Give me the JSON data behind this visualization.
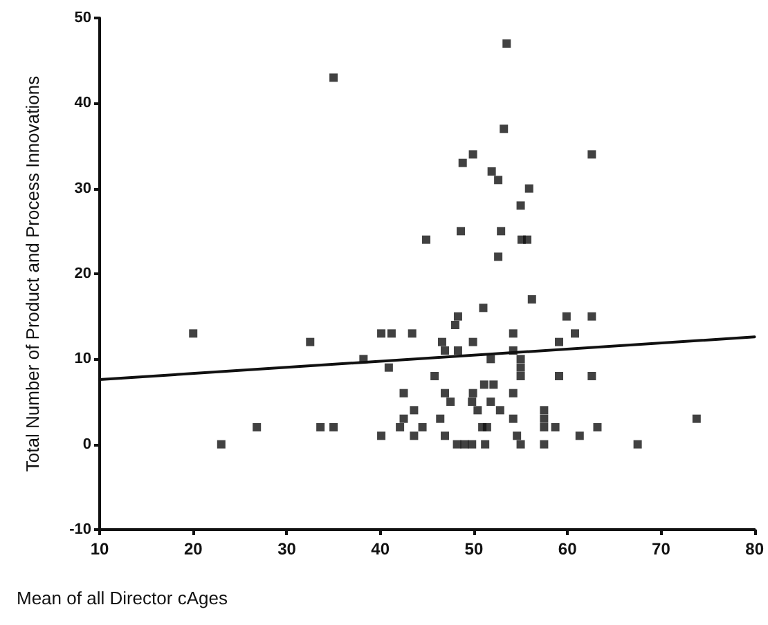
{
  "chart_data": {
    "type": "scatter",
    "xlabel": "Mean of all Director cAges",
    "ylabel": "Total Number of Product and Process Innovations",
    "xlim": [
      10,
      80
    ],
    "xticks": [
      10,
      20,
      30,
      40,
      50,
      60,
      70,
      80
    ],
    "ylim": [
      -10,
      50
    ],
    "yticks": [
      -10,
      0,
      10,
      20,
      30,
      40,
      50
    ],
    "marker": "square",
    "series": [
      {
        "color": "#111111",
        "x": [
          35,
          44.9,
          53.5,
          53.2,
          62.6,
          49.9,
          48.8,
          51.9,
          52.6,
          55.9,
          55,
          48.6,
          52.9,
          55.1,
          55.7,
          52.6,
          20,
          23,
          26.8,
          32.5,
          33.6,
          35,
          38.2,
          40.1,
          41.2,
          43.4,
          40.9,
          40.1,
          42.5,
          42.5,
          43.6,
          42.1,
          43.6,
          44.5,
          56.2,
          51,
          48.3,
          48,
          59.9,
          62.6,
          60.8,
          54.2,
          46.6,
          49.9,
          59.1,
          46.9,
          48.3,
          54.2,
          51.8,
          55,
          55,
          55,
          45.8,
          59.1,
          62.6,
          51.1,
          52.1,
          46.9,
          49.9,
          54.2,
          47.5,
          49.8,
          51.8,
          50.4,
          52.8,
          57.5,
          57.5,
          46.4,
          54.2,
          50.9,
          51.4,
          57.5,
          58.7,
          63.2,
          46.9,
          54.6,
          61.3,
          48.2,
          49,
          49.8,
          51.2,
          55,
          57.5,
          67.5,
          73.8
        ],
        "values": [
          43,
          24,
          47,
          37,
          34,
          34,
          33,
          32,
          31,
          30,
          28,
          25,
          25,
          24,
          24,
          22,
          13,
          0,
          2,
          12,
          2,
          2,
          10,
          13,
          13,
          13,
          9,
          1,
          6,
          3,
          4,
          2,
          1,
          2,
          17,
          16,
          15,
          14,
          15,
          15,
          13,
          13,
          12,
          12,
          12,
          11,
          11,
          11,
          10,
          10,
          9,
          8,
          8,
          8,
          8,
          7,
          7,
          6,
          6,
          6,
          5,
          5,
          5,
          4,
          4,
          4,
          3,
          3,
          3,
          2,
          2,
          2,
          2,
          2,
          1,
          1,
          1,
          0,
          0,
          0,
          0,
          0,
          0,
          0,
          3
        ]
      },
      {
        "type": "line",
        "color": "#111111",
        "marker": "none",
        "x": [
          10,
          80
        ],
        "values": [
          7.6,
          12.6
        ]
      }
    ]
  }
}
